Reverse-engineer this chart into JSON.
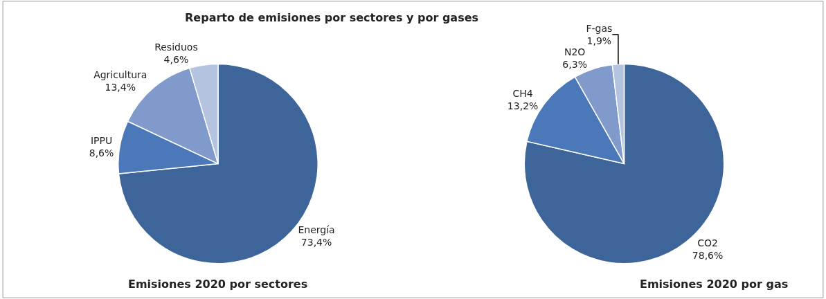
{
  "chart_data": [
    {
      "type": "pie",
      "title": "Emisiones 2020 por sectores",
      "annotations": [
        "Reparto de emisiones por sectores y por gases"
      ],
      "categories": [
        "Energía",
        "IPPU",
        "Agricultura",
        "Residuos"
      ],
      "values": [
        73.4,
        8.6,
        13.4,
        4.6
      ],
      "value_labels": [
        "73,4%",
        "8,6%",
        "13,4%",
        "4,6%"
      ],
      "colors": [
        "#3d6599",
        "#4a78b8",
        "#7f9acb",
        "#b4c3df"
      ]
    },
    {
      "type": "pie",
      "title": "Emisiones 2020 por gas",
      "categories": [
        "CO2",
        "CH4",
        "N2O",
        "F-gas"
      ],
      "values": [
        78.6,
        13.2,
        6.3,
        1.9
      ],
      "value_labels": [
        "78,6%",
        "13,2%",
        "6,3%",
        "1,9%"
      ],
      "colors": [
        "#3d6599",
        "#4a78b8",
        "#7f9acb",
        "#b4c3df"
      ]
    }
  ]
}
